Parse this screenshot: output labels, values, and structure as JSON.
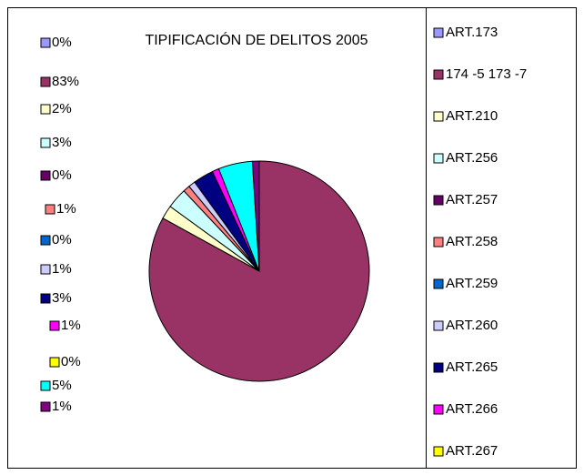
{
  "chart_data": {
    "type": "pie",
    "title": "TIPIFICACIÓN DE DELITOS 2005",
    "categories": [
      "ART.173",
      "174 -5 173 -7",
      "ART.210",
      "ART.256",
      "ART.257",
      "ART.258",
      "ART.259",
      "ART.260",
      "ART.265",
      "ART.266",
      "ART.267",
      null,
      null
    ],
    "values": [
      0,
      83,
      2,
      3,
      0,
      1,
      0,
      1,
      3,
      1,
      0,
      5,
      1
    ],
    "value_labels": [
      "0%",
      "83%",
      "2%",
      "3%",
      "0%",
      "1%",
      "0%",
      "1%",
      "3%",
      "1%",
      "0%",
      "5%",
      "1%"
    ],
    "colors": [
      "#9999ff",
      "#993366",
      "#ffffcc",
      "#ccffff",
      "#660066",
      "#ff8080",
      "#0066cc",
      "#ccccff",
      "#000080",
      "#ff00ff",
      "#ffff00",
      "#00ffff",
      "#800080"
    ],
    "legend": "right"
  }
}
